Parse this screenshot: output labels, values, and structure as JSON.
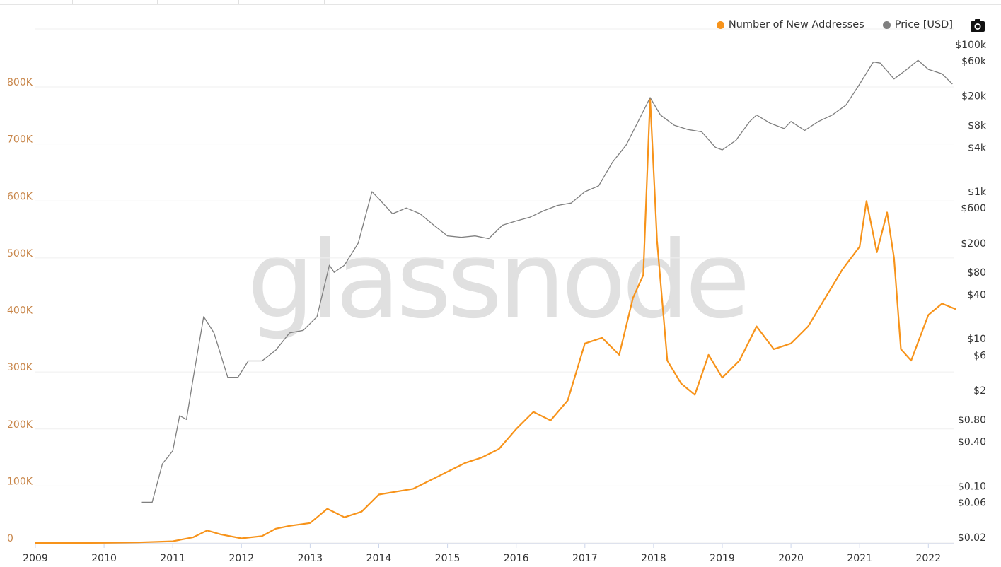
{
  "watermark": "glassnode",
  "legend": [
    {
      "label": "Number of New Addresses",
      "color": "#f7931a"
    },
    {
      "label": "Price [USD]",
      "color": "#7f7f7f"
    }
  ],
  "camera_icon": "camera-icon",
  "chart_data": {
    "type": "line",
    "x_ticks": [
      "2009",
      "2010",
      "2011",
      "2012",
      "2013",
      "2014",
      "2015",
      "2016",
      "2017",
      "2018",
      "2019",
      "2020",
      "2021",
      "2022"
    ],
    "y_left": {
      "ticks": [
        "0",
        "100K",
        "200K",
        "300K",
        "400K",
        "500K",
        "600K",
        "700K",
        "800K"
      ],
      "range": [
        0,
        800000
      ],
      "color": "#c8864a"
    },
    "y_right": {
      "scale": "log",
      "ticks": [
        "$0.02",
        "$0.06",
        "$0.10",
        "$0.40",
        "$0.80",
        "$2",
        "$6",
        "$10",
        "$40",
        "$80",
        "$200",
        "$600",
        "$1k",
        "$4k",
        "$8k",
        "$20k",
        "$60k",
        "$100k"
      ],
      "range": [
        0.02,
        100000
      ]
    },
    "grid": true,
    "legend_position": "top-right",
    "series": [
      {
        "name": "Number of New Addresses",
        "color": "#f7931a",
        "x": [
          2009.0,
          2010.0,
          2010.5,
          2011.0,
          2011.3,
          2011.5,
          2011.7,
          2012.0,
          2012.3,
          2012.5,
          2012.7,
          2013.0,
          2013.25,
          2013.5,
          2013.75,
          2014.0,
          2014.25,
          2014.5,
          2014.75,
          2015.0,
          2015.25,
          2015.5,
          2015.75,
          2016.0,
          2016.25,
          2016.5,
          2016.75,
          2017.0,
          2017.25,
          2017.5,
          2017.7,
          2017.85,
          2017.95,
          2018.05,
          2018.2,
          2018.4,
          2018.6,
          2018.8,
          2019.0,
          2019.25,
          2019.5,
          2019.75,
          2020.0,
          2020.25,
          2020.5,
          2020.75,
          2021.0,
          2021.1,
          2021.25,
          2021.4,
          2021.5,
          2021.6,
          2021.75,
          2022.0,
          2022.2,
          2022.4
        ],
        "values": [
          0,
          200,
          1000,
          3000,
          10000,
          22000,
          15000,
          8000,
          12000,
          25000,
          30000,
          35000,
          60000,
          45000,
          55000,
          85000,
          90000,
          95000,
          110000,
          125000,
          140000,
          150000,
          165000,
          200000,
          230000,
          215000,
          250000,
          350000,
          360000,
          330000,
          430000,
          470000,
          780000,
          530000,
          320000,
          280000,
          260000,
          330000,
          290000,
          320000,
          380000,
          340000,
          350000,
          380000,
          430000,
          480000,
          520000,
          600000,
          510000,
          580000,
          500000,
          340000,
          320000,
          400000,
          420000,
          410000
        ]
      },
      {
        "name": "Price [USD]",
        "color": "#7f7f7f",
        "x": [
          2010.55,
          2010.7,
          2010.85,
          2011.0,
          2011.1,
          2011.2,
          2011.3,
          2011.45,
          2011.6,
          2011.8,
          2011.95,
          2012.1,
          2012.3,
          2012.5,
          2012.7,
          2012.9,
          2013.1,
          2013.28,
          2013.35,
          2013.5,
          2013.7,
          2013.9,
          2014.0,
          2014.2,
          2014.4,
          2014.6,
          2014.8,
          2015.0,
          2015.2,
          2015.4,
          2015.6,
          2015.8,
          2016.0,
          2016.2,
          2016.4,
          2016.6,
          2016.8,
          2017.0,
          2017.2,
          2017.4,
          2017.6,
          2017.8,
          2017.95,
          2018.1,
          2018.3,
          2018.5,
          2018.7,
          2018.9,
          2019.0,
          2019.2,
          2019.4,
          2019.5,
          2019.7,
          2019.9,
          2020.0,
          2020.2,
          2020.4,
          2020.6,
          2020.8,
          2021.0,
          2021.2,
          2021.3,
          2021.5,
          2021.7,
          2021.85,
          2022.0,
          2022.2,
          2022.35
        ],
        "values": [
          0.06,
          0.06,
          0.2,
          0.3,
          0.9,
          0.8,
          3,
          20,
          12,
          3,
          3,
          5,
          5,
          7,
          12,
          13,
          20,
          100,
          80,
          100,
          200,
          1000,
          800,
          500,
          600,
          500,
          350,
          250,
          240,
          250,
          230,
          350,
          400,
          450,
          550,
          650,
          700,
          1000,
          1200,
          2500,
          4300,
          10000,
          19000,
          11000,
          8000,
          7000,
          6500,
          4000,
          3700,
          5000,
          9000,
          11000,
          8500,
          7200,
          9000,
          6800,
          9000,
          11000,
          15000,
          29000,
          58000,
          56000,
          34000,
          47000,
          61000,
          46000,
          40000,
          29000
        ]
      }
    ]
  }
}
